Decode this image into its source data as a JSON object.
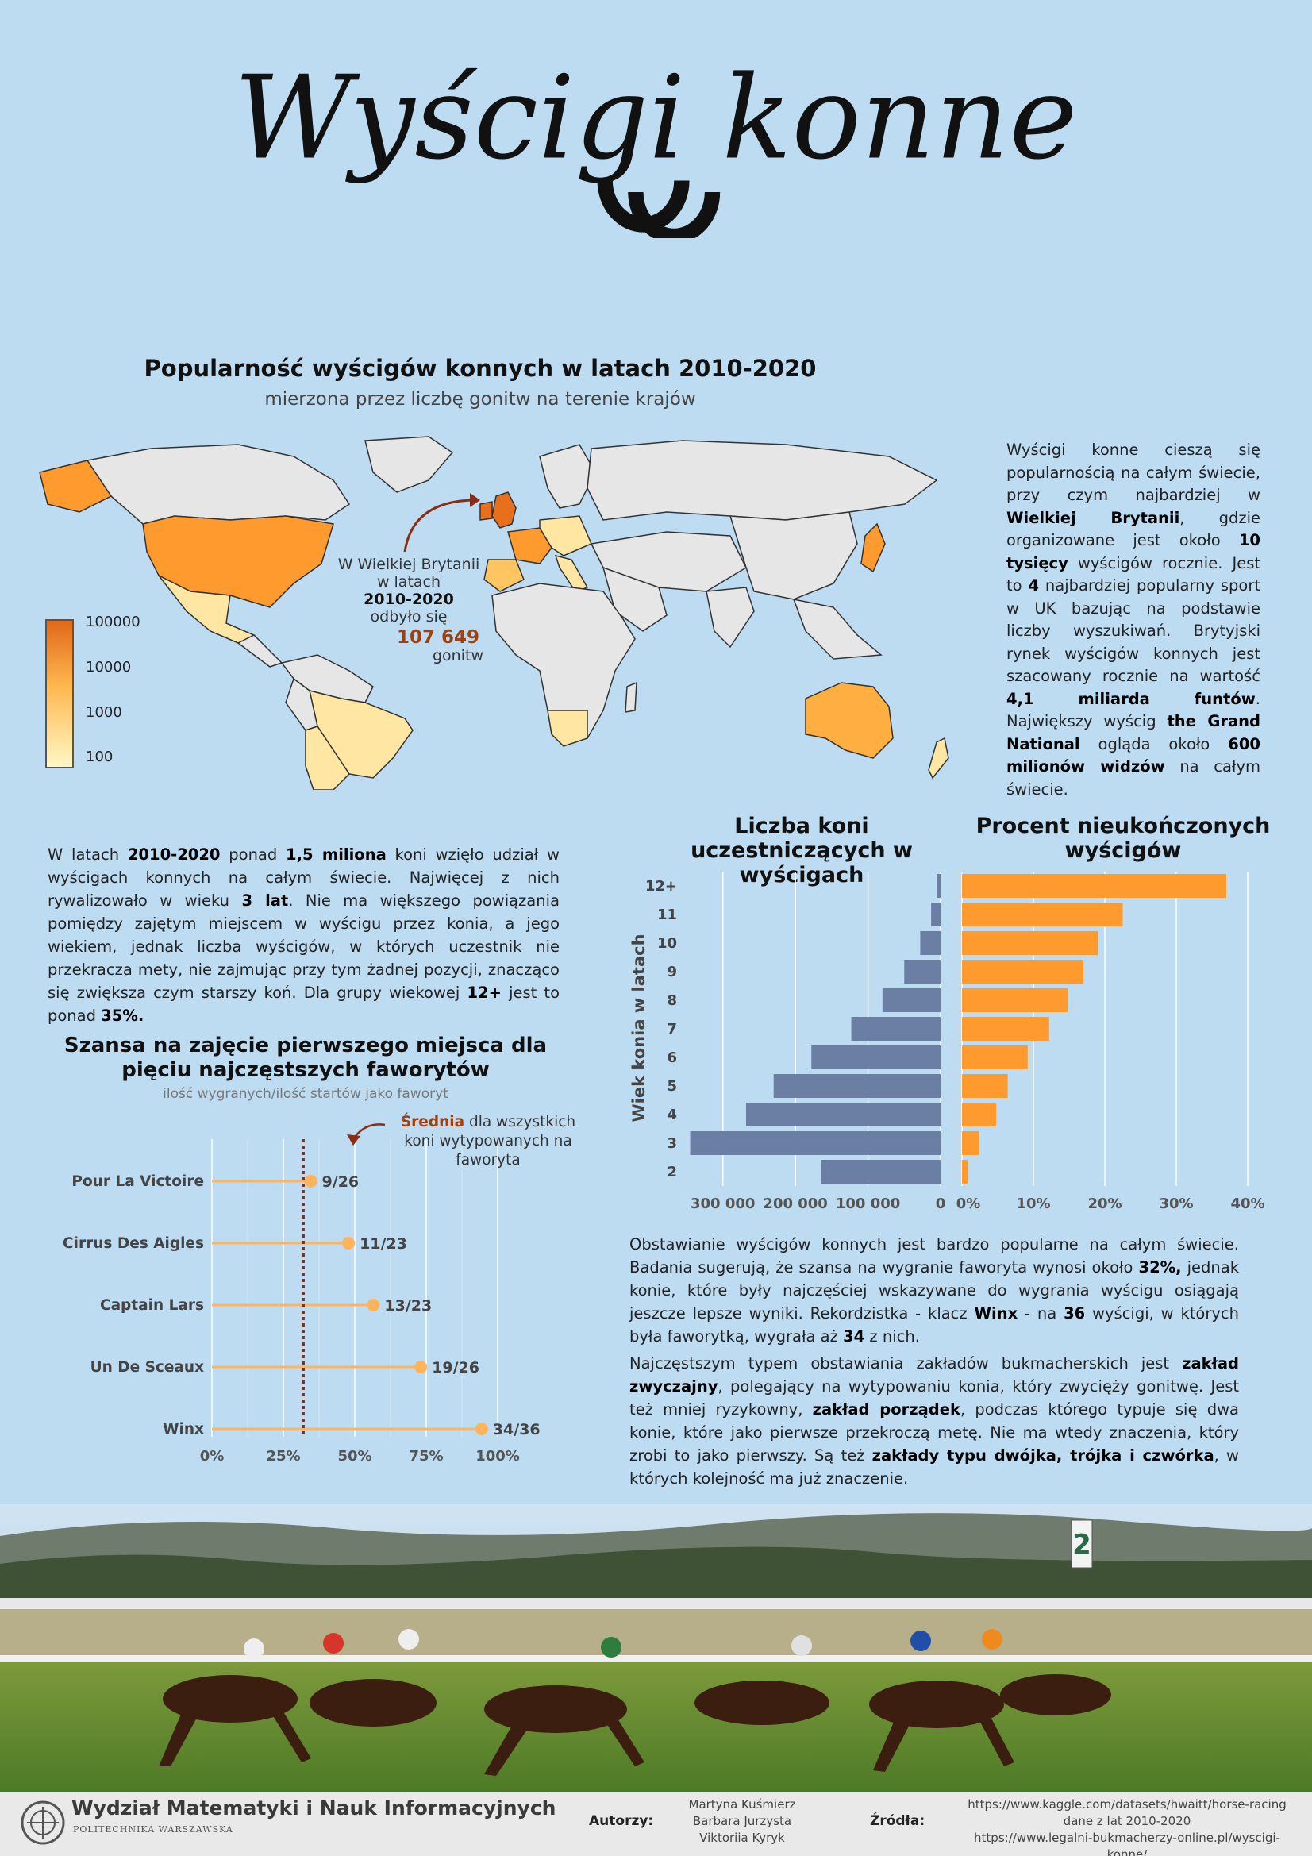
{
  "header": {
    "title": "Wyścigi konne"
  },
  "map_section": {
    "title": "Popularność wyścigów konnych w latach 2010-2020",
    "subtitle": "mierzona przez liczbę gonitw na terenie krajów",
    "legend": [
      "100000",
      "10000",
      "1000",
      "100"
    ],
    "colors": {
      "low": "#fff7c6",
      "mid": "#ffc560",
      "high": "#e8701c",
      "land": "#e6e6e6"
    },
    "annotation": {
      "line1": "W Wielkiej Brytanii",
      "line2": "w latach",
      "line3": "2010-2020",
      "line4": "odbyło się",
      "value": "107 649",
      "line5": "gonitw"
    }
  },
  "intro_text": {
    "p1": "Wyścigi konne cieszą się popularnością na całym świecie, przy czym najbardziej w ",
    "b1": "Wielkiej Brytanii",
    "p2": ", gdzie organizowane jest około ",
    "b2": "10 tysięcy",
    "p3": " wyścigów rocznie. Jest to ",
    "b3": "4",
    "p4": " najbardziej popularny sport w UK bazując na podstawie liczby wyszukiwań. Brytyjski rynek wyścigów konnych jest szacowany rocznie na wartość ",
    "b4": "4,1 miliarda funtów",
    "p5": ". Największy wyścig ",
    "b5": "the Grand National",
    "p6": " ogląda około ",
    "b6": "600 milionów widzów",
    "p7": " na całym świecie."
  },
  "age_text": {
    "p1": "W latach ",
    "b1": "2010-2020",
    "p2": " ponad ",
    "b2": "1,5 miliona",
    "p3": " koni wzięło udział w wyścigach konnych na całym świecie. Najwięcej z nich rywalizowało w wieku ",
    "b3": "3 lat",
    "p4": ". Nie ma większego powiązania pomiędzy zajętym miejscem w wyścigu przez konia, a jego wiekiem, jednak liczba wyścigów, w których uczestnik nie przekracza mety, nie zajmując przy tym żadnej pozycji, znacząco się zwiększa czym starszy koń. Dla grupy wiekowej ",
    "b4": "12+",
    "p5": " jest to ponad ",
    "b5": "35%."
  },
  "betting_text": {
    "p1": "Obstawianie wyścigów konnych jest bardzo popularne na całym świecie. Badania sugerują, że szansa na wygranie faworyta wynosi około ",
    "b1": "32%,",
    "p2": " jednak konie, które były najczęściej wskazywane do wygrania wyścigu osiągają jeszcze lepsze wyniki. Rekordzistka - klacz ",
    "b2": "Winx",
    "p3": " - na ",
    "b3": "36",
    "p4": " wyścigi, w których była faworytką, wygrała aż ",
    "b4": "34",
    "p5": " z nich.",
    "q1": "Najczęstszym typem obstawiania zakładów bukmacherskich jest ",
    "qb1": "zakład zwyczajny",
    "q2": ", polegający na wytypowaniu konia, który zwycięży gonitwę. Jest też mniej ryzykowny, ",
    "qb2": "zakład porządek",
    "q3": ", podczas którego typuje się dwa konie, które jako pierwsze przekroczą metę. Nie ma wtedy znaczenia, który zrobi to jako pierwszy. Są też ",
    "qb3": "zakłady typu dwójka, trójka i czwórka",
    "q4": ", w których kolejność ma już znaczenie."
  },
  "chart_data": [
    {
      "type": "bar",
      "orientation": "horizontal",
      "title": "Liczba koni uczestniczących w wyścigach",
      "ylabel": "Wiek konia w latach",
      "categories": [
        "12+",
        "11",
        "10",
        "9",
        "8",
        "7",
        "6",
        "5",
        "4",
        "3",
        "2"
      ],
      "values": [
        5000,
        13000,
        28000,
        50000,
        80000,
        123000,
        178000,
        230000,
        268000,
        345000,
        165000
      ],
      "xlim": [
        0,
        350000
      ],
      "xticks": [
        "300 000",
        "200 000",
        "100 000",
        "0"
      ],
      "color": "#6a7fa3"
    },
    {
      "type": "bar",
      "orientation": "horizontal",
      "title": "Procent nieukończonych wyścigów",
      "categories": [
        "12+",
        "11",
        "10",
        "9",
        "8",
        "7",
        "6",
        "5",
        "4",
        "3",
        "2"
      ],
      "values": [
        37,
        22.5,
        19,
        17,
        14.8,
        12.2,
        9.2,
        6.4,
        4.8,
        2.4,
        0.8
      ],
      "xlim": [
        0,
        40
      ],
      "xticks": [
        "0%",
        "10%",
        "20%",
        "30%",
        "40%"
      ],
      "color": "#ff9a2e"
    },
    {
      "type": "scatter",
      "subtype": "lollipop",
      "title": "Szansa na zajęcie pierwszego miejsca dla pięciu najczęstszych faworytów",
      "subtitle": "ilość wygranych/ilość startów jako faworyt",
      "categories": [
        "Pour La Victoire",
        "Cirrus Des Aigles",
        "Captain Lars",
        "Un De Sceaux",
        "Winx"
      ],
      "values": [
        34.6,
        47.8,
        56.5,
        73.1,
        94.4
      ],
      "labels": [
        "9/26",
        "11/23",
        "13/23",
        "19/26",
        "34/36"
      ],
      "average": 32,
      "average_label_bold": "Średnia",
      "average_label_rest": " dla wszystkich",
      "average_label_line2": "koni wytypowanych na",
      "average_label_line3": "faworyta",
      "xlim": [
        0,
        100
      ],
      "xticks": [
        "0%",
        "25%",
        "50%",
        "75%",
        "100%"
      ],
      "color": "#ffb35c",
      "avg_color": "#8b2d12"
    }
  ],
  "footer": {
    "faculty": "Wydział Matematyki i Nauk Informacyjnych",
    "university": "POLITECHNIKA WARSZAWSKA",
    "authors_label": "Autorzy:",
    "authors": [
      "Martyna Kuśmierz",
      "Barbara Jurzysta",
      "Viktoriia Kyryk"
    ],
    "sources_label": "Źródła:",
    "sources": [
      "https://www.kaggle.com/datasets/hwaitt/horse-racing",
      "dane z lat 2010-2020",
      "https://www.legalni-bukmacherzy-online.pl/wyscigi-konne/"
    ]
  }
}
